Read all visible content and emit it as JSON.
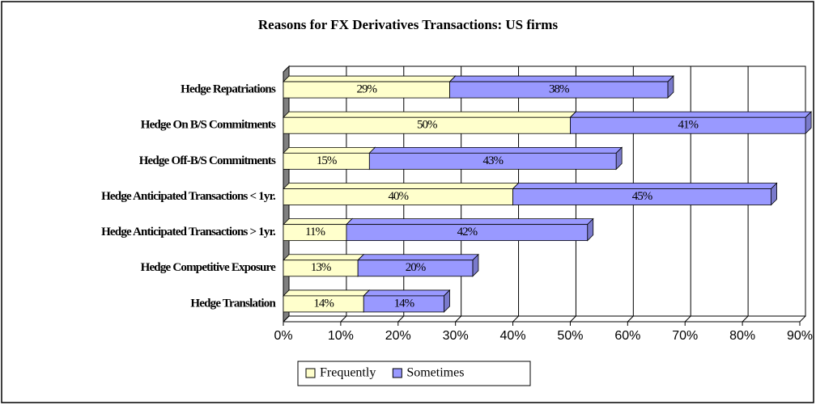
{
  "chart_data": {
    "type": "stacked-bar-horizontal",
    "title": "Reasons for FX Derivatives Transactions: US firms",
    "categories": [
      "Hedge Repatriations",
      "Hedge On B/S Commitments",
      "Hedge Off-B/S Commitments",
      "Hedge Anticipated Transactions < 1yr.",
      "Hedge Anticipated Transactions > 1yr.",
      "Hedge Competitive Exposure",
      "Hedge Translation"
    ],
    "series": [
      {
        "name": "Frequently",
        "color": "#ffffcc",
        "values": [
          29,
          50,
          15,
          40,
          11,
          13,
          14
        ],
        "value_labels": [
          "29%",
          "50%",
          "15%",
          "40%",
          "11%",
          "13%",
          "14%"
        ]
      },
      {
        "name": "Sometimes",
        "color": "#9999ff",
        "values": [
          38,
          41,
          43,
          45,
          42,
          20,
          14
        ],
        "value_labels": [
          "38%",
          "41%",
          "43%",
          "45%",
          "42%",
          "20%",
          "14%"
        ]
      }
    ],
    "xlim": [
      0,
      90
    ],
    "xticks": [
      {
        "value": 0,
        "label": "0%"
      },
      {
        "value": 10,
        "label": "10%"
      },
      {
        "value": 20,
        "label": "20%"
      },
      {
        "value": 30,
        "label": "30%"
      },
      {
        "value": 40,
        "label": "40%"
      },
      {
        "value": 50,
        "label": "50%"
      },
      {
        "value": 60,
        "label": "60%"
      },
      {
        "value": 70,
        "label": "70%"
      },
      {
        "value": 80,
        "label": "80%"
      },
      {
        "value": 90,
        "label": "90%"
      }
    ],
    "grid": true,
    "legend": "bottom"
  }
}
